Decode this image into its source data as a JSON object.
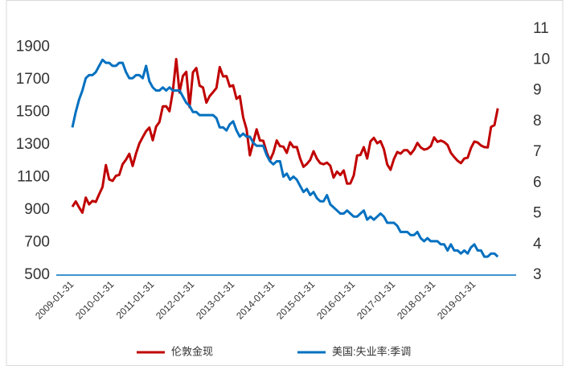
{
  "chart_data": {
    "type": "line",
    "categories": [
      "2009-01-31",
      null,
      null,
      null,
      null,
      null,
      null,
      null,
      null,
      null,
      null,
      null,
      "2010-01-31",
      null,
      null,
      null,
      null,
      null,
      null,
      null,
      null,
      null,
      null,
      null,
      "2011-01-31",
      null,
      null,
      null,
      null,
      null,
      null,
      null,
      null,
      null,
      null,
      null,
      "2012-01-31",
      null,
      null,
      null,
      null,
      null,
      null,
      null,
      null,
      null,
      null,
      null,
      "2013-01-31",
      null,
      null,
      null,
      null,
      null,
      null,
      null,
      null,
      null,
      null,
      null,
      "2014-01-31",
      null,
      null,
      null,
      null,
      null,
      null,
      null,
      null,
      null,
      null,
      null,
      "2015-01-31",
      null,
      null,
      null,
      null,
      null,
      null,
      null,
      null,
      null,
      null,
      null,
      "2016-01-31",
      null,
      null,
      null,
      null,
      null,
      null,
      null,
      null,
      null,
      null,
      null,
      "2017-01-31",
      null,
      null,
      null,
      null,
      null,
      null,
      null,
      null,
      null,
      null,
      null,
      "2018-01-31",
      null,
      null,
      null,
      null,
      null,
      null,
      null,
      null,
      null,
      null,
      null,
      "2019-01-31",
      null,
      null,
      null,
      null,
      null,
      null,
      null
    ],
    "series": [
      {
        "name": "伦敦金现",
        "color": "#c00000",
        "values": [
          919,
          952,
          916,
          883,
          975,
          934,
          955,
          949,
          996,
          1040,
          1175,
          1087,
          1078,
          1109,
          1115,
          1180,
          1208,
          1244,
          1169,
          1246,
          1307,
          1346,
          1383,
          1405,
          1327,
          1411,
          1439,
          1535,
          1536,
          1505,
          1628,
          1825,
          1620,
          1722,
          1747,
          1531,
          1744,
          1770,
          1662,
          1651,
          1558,
          1598,
          1622,
          1648,
          1776,
          1719,
          1721,
          1657,
          1664,
          1581,
          1598,
          1467,
          1394,
          1235,
          1314,
          1394,
          1326,
          1324,
          1253,
          1204,
          1251,
          1326,
          1291,
          1288,
          1250,
          1315,
          1285,
          1286,
          1216,
          1164,
          1182,
          1206,
          1260,
          1214,
          1187,
          1180,
          1190,
          1171,
          1098,
          1135,
          1114,
          1142,
          1061,
          1062,
          1111,
          1234,
          1237,
          1285,
          1215,
          1320,
          1342,
          1309,
          1322,
          1273,
          1178,
          1146,
          1212,
          1255,
          1245,
          1266,
          1266,
          1242,
          1269,
          1311,
          1283,
          1270,
          1275,
          1291,
          1345,
          1317,
          1325,
          1316,
          1298,
          1250,
          1224,
          1201,
          1187,
          1215,
          1220,
          1279,
          1319,
          1313,
          1295,
          1285,
          1283,
          1409,
          1420,
          1523
        ]
      },
      {
        "name": "美国:失业率:季调",
        "color": "#0070c0",
        "axis": "y2",
        "values": [
          7.8,
          8.3,
          8.7,
          9.0,
          9.4,
          9.5,
          9.5,
          9.6,
          9.8,
          10.0,
          9.9,
          9.9,
          9.8,
          9.8,
          9.9,
          9.9,
          9.6,
          9.4,
          9.4,
          9.5,
          9.5,
          9.4,
          9.8,
          9.3,
          9.1,
          9.0,
          9.0,
          9.1,
          9.0,
          9.1,
          9.0,
          9.0,
          9.0,
          8.8,
          8.6,
          8.5,
          8.3,
          8.3,
          8.2,
          8.2,
          8.2,
          8.2,
          8.2,
          8.1,
          7.8,
          7.8,
          7.7,
          7.9,
          8.0,
          7.7,
          7.5,
          7.6,
          7.5,
          7.5,
          7.3,
          7.2,
          7.2,
          7.2,
          6.9,
          6.7,
          6.6,
          6.7,
          6.7,
          6.2,
          6.3,
          6.1,
          6.2,
          6.1,
          5.9,
          5.7,
          5.8,
          5.6,
          5.7,
          5.5,
          5.4,
          5.4,
          5.6,
          5.3,
          5.2,
          5.1,
          5.0,
          5.0,
          5.1,
          5.0,
          4.9,
          4.9,
          5.0,
          5.1,
          4.8,
          4.9,
          4.8,
          4.9,
          5.0,
          4.9,
          4.7,
          4.7,
          4.7,
          4.6,
          4.4,
          4.4,
          4.4,
          4.3,
          4.3,
          4.4,
          4.2,
          4.1,
          4.2,
          4.1,
          4.1,
          4.1,
          4.0,
          4.0,
          3.8,
          4.0,
          3.8,
          3.8,
          3.7,
          3.8,
          3.7,
          3.9,
          4.0,
          3.8,
          3.8,
          3.6,
          3.6,
          3.7,
          3.7,
          3.6
        ]
      }
    ],
    "ylim": [
      500,
      2010
    ],
    "yticks": [
      500,
      700,
      900,
      1100,
      1300,
      1500,
      1700,
      1900
    ],
    "y2lim": [
      3,
      11
    ],
    "y2ticks": [
      3,
      4,
      5,
      6,
      7,
      8,
      9,
      10,
      11
    ]
  }
}
